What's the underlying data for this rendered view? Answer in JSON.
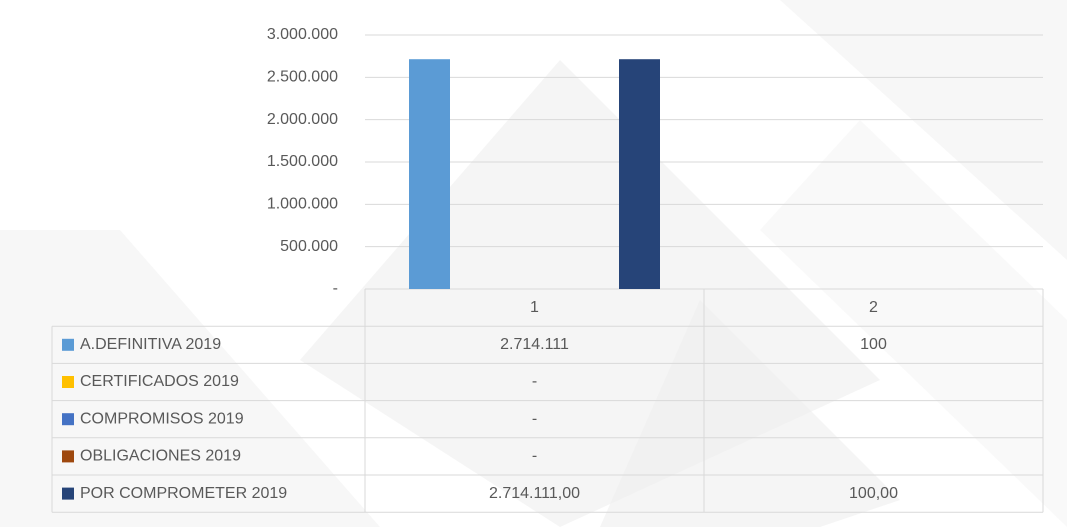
{
  "chart_data": {
    "type": "bar",
    "categories": [
      "1",
      "2"
    ],
    "series": [
      {
        "name": "A.DEFINITIVA 2019",
        "color": "#5b9bd5",
        "values": [
          2714111,
          100
        ],
        "value_labels": [
          "2.714.111",
          "100"
        ]
      },
      {
        "name": "CERTIFICADOS 2019",
        "color": "#ffc000",
        "values": [
          0,
          null
        ],
        "value_labels": [
          "-",
          null
        ]
      },
      {
        "name": "COMPROMISOS 2019",
        "color": "#4472c4",
        "values": [
          0,
          null
        ],
        "value_labels": [
          "-",
          null
        ]
      },
      {
        "name": "OBLIGACIONES 2019",
        "color": "#9e480e",
        "values": [
          0,
          null
        ],
        "value_labels": [
          "-",
          null
        ]
      },
      {
        "name": "POR COMPROMETER 2019",
        "color": "#264478",
        "values": [
          2714111,
          100
        ],
        "value_labels": [
          "2.714.111,00",
          "100,00"
        ]
      }
    ],
    "ylim": [
      0,
      3000000
    ],
    "yticks": [
      {
        "value": 0,
        "label": "-"
      },
      {
        "value": 500000,
        "label": "500.000"
      },
      {
        "value": 1000000,
        "label": "1.000.000"
      },
      {
        "value": 1500000,
        "label": "1.500.000"
      },
      {
        "value": 2000000,
        "label": "2.000.000"
      },
      {
        "value": 2500000,
        "label": "2.500.000"
      },
      {
        "value": 3000000,
        "label": "3.000.000"
      }
    ],
    "grid": true,
    "data_table": true
  }
}
